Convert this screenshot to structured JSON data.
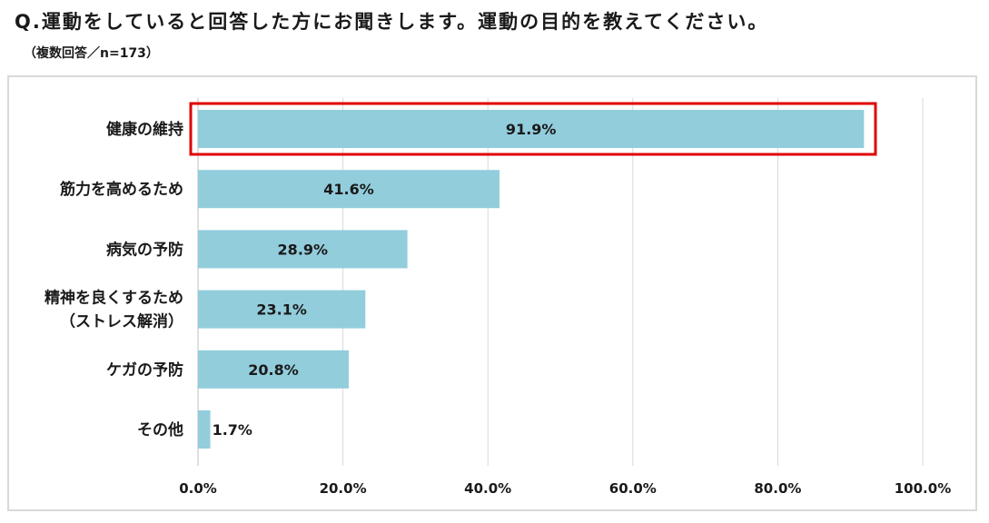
{
  "header": {
    "title": "Q.運動をしていると回答した方にお聞きします。運動の目的を教えてください。",
    "subtitle": "（複数回答／n=173）"
  },
  "colors": {
    "bar": "#92cddc",
    "highlight": "#e00000",
    "grid": "#d9d9d9"
  },
  "chart_data": {
    "type": "bar",
    "orientation": "horizontal",
    "categories": [
      "健康の維持",
      "筋力を高めるため",
      "病気の予防",
      "精神を良くするため（ストレス解消）",
      "ケガの予防",
      "その他"
    ],
    "category_lines": [
      [
        "健康の維持"
      ],
      [
        "筋力を高めるため"
      ],
      [
        "病気の予防"
      ],
      [
        "精神を良くするため",
        "（ストレス解消）"
      ],
      [
        "ケガの予防"
      ],
      [
        "その他"
      ]
    ],
    "values": [
      91.9,
      41.6,
      28.9,
      23.1,
      20.8,
      1.7
    ],
    "value_labels": [
      "91.9%",
      "41.6%",
      "28.9%",
      "23.1%",
      "20.8%",
      "1.7%"
    ],
    "xlim": [
      0,
      100
    ],
    "ticks": [
      0,
      20,
      40,
      60,
      80,
      100
    ],
    "tick_labels": [
      "0.0%",
      "20.0%",
      "40.0%",
      "60.0%",
      "80.0%",
      "100.0%"
    ],
    "grid": true,
    "highlighted_category": "健康の維持"
  }
}
